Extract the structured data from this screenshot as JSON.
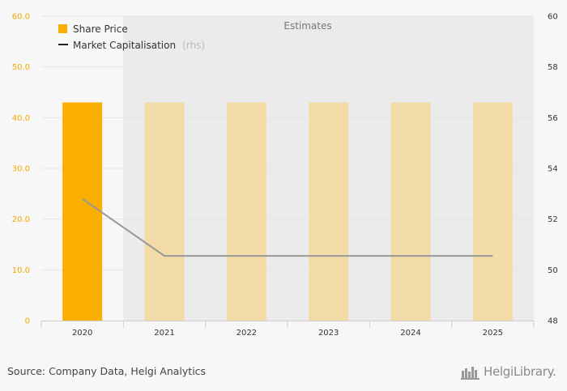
{
  "chart_data": {
    "type": "bar",
    "categories": [
      "2020",
      "2021",
      "2022",
      "2023",
      "2024",
      "2025"
    ],
    "series": [
      {
        "name": "Share Price",
        "type": "bar",
        "axis": "left",
        "values": [
          43.0,
          43.0,
          43.0,
          43.0,
          43.0,
          43.0
        ],
        "estimated": [
          false,
          true,
          true,
          true,
          true,
          true
        ],
        "color": "#f9ae00",
        "estimate_color": "#f2dba6"
      },
      {
        "name": "Market Capitalisation",
        "name_suffix": "(rhs)",
        "type": "line",
        "axis": "right",
        "values": [
          52.8,
          50.55,
          50.55,
          50.55,
          50.55,
          50.55
        ],
        "color": "#999999"
      }
    ],
    "y_left": {
      "ylim": [
        0,
        60
      ],
      "ticks": [
        0,
        10,
        20,
        30,
        40,
        50,
        60
      ],
      "tick_labels": [
        "0",
        "10.0",
        "20.0",
        "30.0",
        "40.0",
        "50.0",
        "60.0"
      ]
    },
    "y_right": {
      "ylim": [
        48,
        60
      ],
      "ticks": [
        48,
        50,
        52,
        54,
        56,
        58,
        60
      ],
      "tick_labels": [
        "48",
        "50",
        "52",
        "54",
        "56",
        "58",
        "60"
      ]
    },
    "estimates_label": "Estimates",
    "estimates_start_category": "2021",
    "grid": true,
    "legend_position": "top-left"
  },
  "footer": {
    "source": "Source: Company Data, Helgi Analytics",
    "brand": "HelgiLibrary."
  },
  "colors": {
    "background": "#f7f7f7",
    "estimates_band": "#ebebeb",
    "gridline": "#e6e6e6",
    "accent": "#f9ae00"
  }
}
